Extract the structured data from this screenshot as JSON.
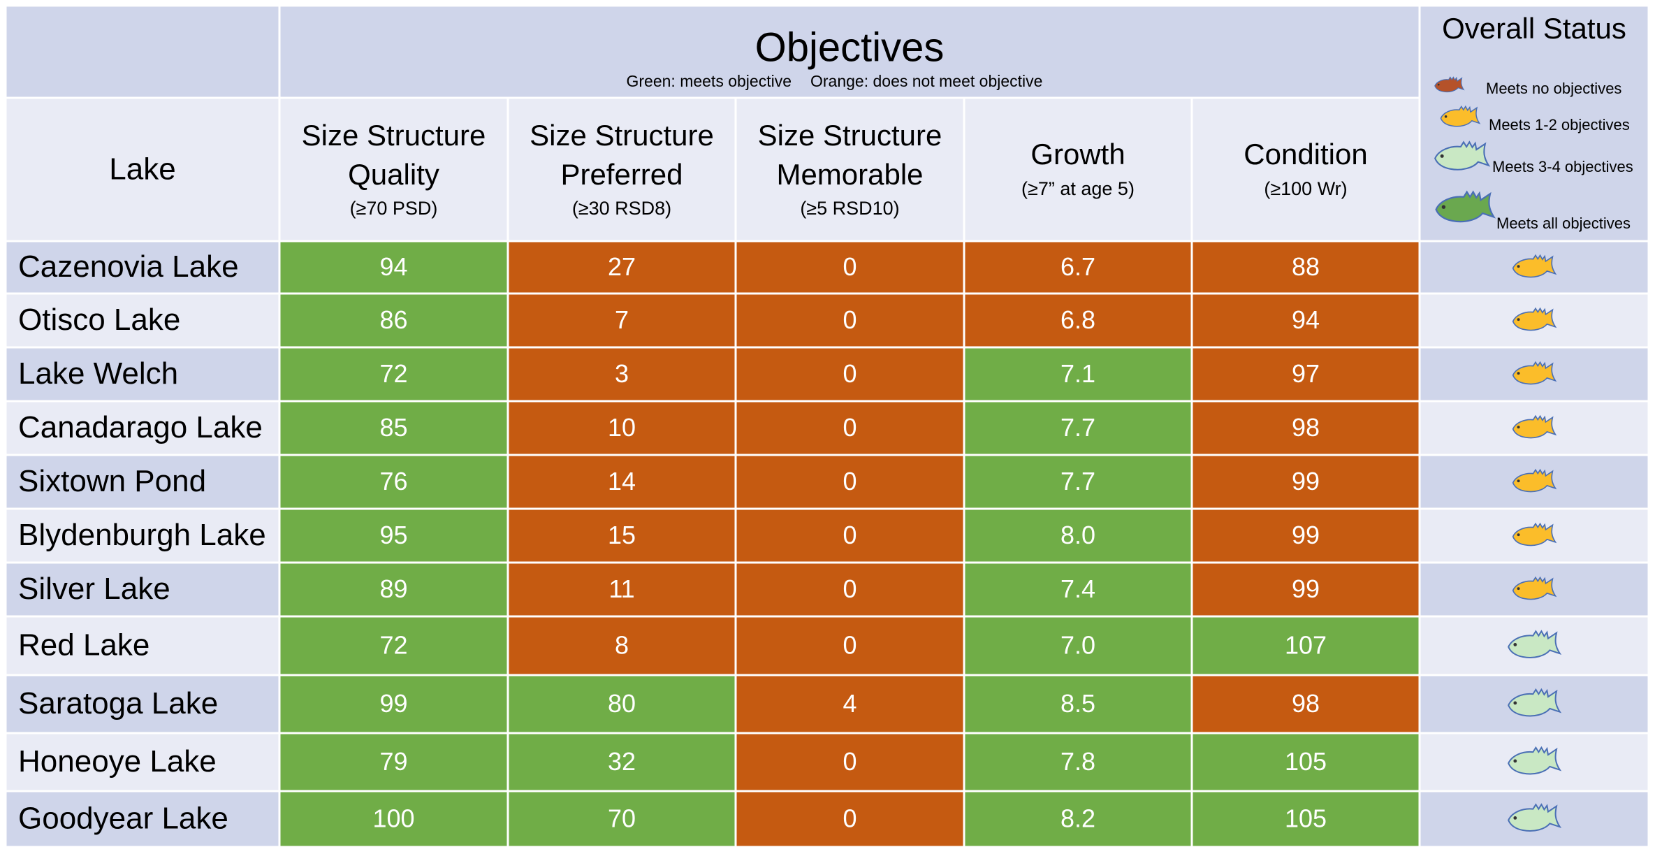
{
  "table": {
    "lake_header": "Lake",
    "objectives_title": "Objectives",
    "key_green": "Green: meets objective",
    "key_orange": "Orange: does not meet objective",
    "columns": [
      {
        "title": [
          "Size Structure",
          "Quality"
        ],
        "criterion": "(≥70 PSD)"
      },
      {
        "title": [
          "Size Structure",
          "Preferred"
        ],
        "criterion": "(≥30 RSD8)"
      },
      {
        "title": [
          "Size Structure",
          "Memorable"
        ],
        "criterion": "(≥5 RSD10)"
      },
      {
        "title": [
          "Growth"
        ],
        "criterion": "(≥7” at age 5)"
      },
      {
        "title": [
          "Condition"
        ],
        "criterion": "(≥100 Wr)"
      }
    ],
    "meets_color": "#70ad47",
    "fails_color": "#c55a11",
    "status_title": "Overall Status",
    "status_legend": [
      {
        "label": "Meets no objectives",
        "color": "#b5522a"
      },
      {
        "label": "Meets 1-2 objectives",
        "color": "#fbbd2a"
      },
      {
        "label": "Meets 3-4 objectives",
        "color": "#c9e8c4"
      },
      {
        "label": "Meets all objectives",
        "color": "#6aa84f"
      }
    ],
    "rows": [
      {
        "lake": "Cazenovia Lake",
        "values": [
          "94",
          "27",
          "0",
          "6.7",
          "88"
        ],
        "meets": [
          true,
          false,
          false,
          false,
          false
        ],
        "status": 1
      },
      {
        "lake": "Otisco Lake",
        "values": [
          "86",
          "7",
          "0",
          "6.8",
          "94"
        ],
        "meets": [
          true,
          false,
          false,
          false,
          false
        ],
        "status": 1
      },
      {
        "lake": "Lake Welch",
        "values": [
          "72",
          "3",
          "0",
          "7.1",
          "97"
        ],
        "meets": [
          true,
          false,
          false,
          true,
          false
        ],
        "status": 1
      },
      {
        "lake": "Canadarago Lake",
        "values": [
          "85",
          "10",
          "0",
          "7.7",
          "98"
        ],
        "meets": [
          true,
          false,
          false,
          true,
          false
        ],
        "status": 1
      },
      {
        "lake": "Sixtown Pond",
        "values": [
          "76",
          "14",
          "0",
          "7.7",
          "99"
        ],
        "meets": [
          true,
          false,
          false,
          true,
          false
        ],
        "status": 1
      },
      {
        "lake": "Blydenburgh Lake",
        "values": [
          "95",
          "15",
          "0",
          "8.0",
          "99"
        ],
        "meets": [
          true,
          false,
          false,
          true,
          false
        ],
        "status": 1
      },
      {
        "lake": "Silver Lake",
        "values": [
          "89",
          "11",
          "0",
          "7.4",
          "99"
        ],
        "meets": [
          true,
          false,
          false,
          true,
          false
        ],
        "status": 1
      },
      {
        "lake": "Red Lake",
        "values": [
          "72",
          "8",
          "0",
          "7.0",
          "107"
        ],
        "meets": [
          true,
          false,
          false,
          true,
          true
        ],
        "status": 2
      },
      {
        "lake": "Saratoga Lake",
        "values": [
          "99",
          "80",
          "4",
          "8.5",
          "98"
        ],
        "meets": [
          true,
          true,
          false,
          true,
          false
        ],
        "status": 2
      },
      {
        "lake": "Honeoye Lake",
        "values": [
          "79",
          "32",
          "0",
          "7.8",
          "105"
        ],
        "meets": [
          true,
          true,
          false,
          true,
          true
        ],
        "status": 2
      },
      {
        "lake": "Goodyear Lake",
        "values": [
          "100",
          "70",
          "0",
          "8.2",
          "105"
        ],
        "meets": [
          true,
          true,
          false,
          true,
          true
        ],
        "status": 2
      }
    ]
  }
}
